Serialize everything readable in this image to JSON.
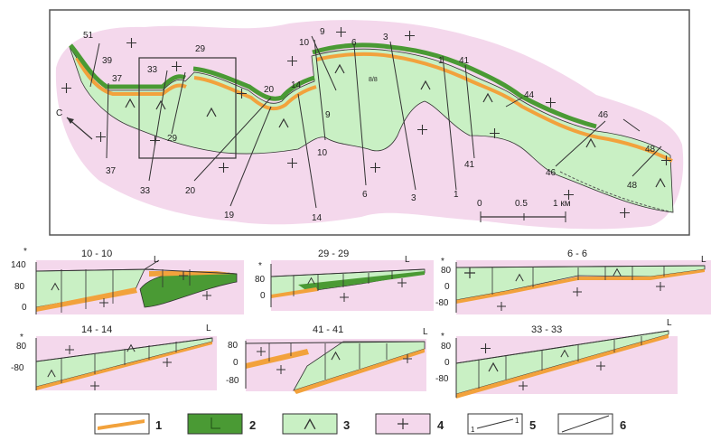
{
  "map": {
    "north_label": "С",
    "scale": {
      "ticks": [
        "0",
        "0.5",
        "1 км"
      ]
    },
    "profile_labels": [
      {
        "id": "51"
      },
      {
        "id": "39"
      },
      {
        "id": "37"
      },
      {
        "id": "37b",
        "text": "37"
      },
      {
        "id": "33a",
        "text": "33"
      },
      {
        "id": "29a",
        "text": "29"
      },
      {
        "id": "29b",
        "text": "29"
      },
      {
        "id": "33b",
        "text": "33"
      },
      {
        "id": "20a",
        "text": "20"
      },
      {
        "id": "20b",
        "text": "20"
      },
      {
        "id": "19"
      },
      {
        "id": "14a",
        "text": "14"
      },
      {
        "id": "14b",
        "text": "14"
      },
      {
        "id": "10a",
        "text": "10"
      },
      {
        "id": "10b",
        "text": "10"
      },
      {
        "id": "9a",
        "text": "9"
      },
      {
        "id": "9b",
        "text": "9"
      },
      {
        "id": "6a",
        "text": "6"
      },
      {
        "id": "6b",
        "text": "6"
      },
      {
        "id": "3a",
        "text": "3"
      },
      {
        "id": "3b",
        "text": "3"
      },
      {
        "id": "1a",
        "text": "1"
      },
      {
        "id": "1b",
        "text": "1"
      },
      {
        "id": "41a",
        "text": "41"
      },
      {
        "id": "41b",
        "text": "41"
      },
      {
        "id": "44"
      },
      {
        "id": "46a",
        "text": "46"
      },
      {
        "id": "46b",
        "text": "46"
      },
      {
        "id": "48a",
        "text": "48"
      },
      {
        "id": "48b",
        "text": "48"
      }
    ],
    "misc_label": "8/8"
  },
  "sections": [
    {
      "id": "s10",
      "title": "10 - 10",
      "yticks": [
        "140",
        "80",
        "0"
      ],
      "end_label": "L"
    },
    {
      "id": "s29",
      "title": "29 - 29",
      "yticks": [
        "80",
        "0"
      ],
      "end_label": "L"
    },
    {
      "id": "s6",
      "title": "6 - 6",
      "yticks": [
        "80",
        "0",
        "-80"
      ],
      "end_label": "L"
    },
    {
      "id": "s14",
      "title": "14 - 14",
      "yticks": [
        "80",
        "-80"
      ],
      "end_label": "L"
    },
    {
      "id": "s41",
      "title": "41 - 41",
      "yticks": [
        "80",
        "0",
        "-80"
      ],
      "end_label": "L"
    },
    {
      "id": "s33",
      "title": "33 - 33",
      "yticks": [
        "80",
        "0",
        "-80"
      ],
      "end_label": "L"
    }
  ],
  "legend": [
    {
      "num": "1",
      "kind": "orange-band"
    },
    {
      "num": "2",
      "kind": "dark-green"
    },
    {
      "num": "3",
      "kind": "light-green-caret"
    },
    {
      "num": "4",
      "kind": "pink-cross"
    },
    {
      "num": "5",
      "kind": "profile-line",
      "end_a": "1",
      "end_b": "1"
    },
    {
      "num": "6",
      "kind": "diagonal-line"
    }
  ],
  "colors": {
    "pink": "#f4d8ec",
    "light_green": "#c9f0c4",
    "dark_green": "#4a9a34",
    "orange": "#f2a23c",
    "line": "#333333"
  }
}
